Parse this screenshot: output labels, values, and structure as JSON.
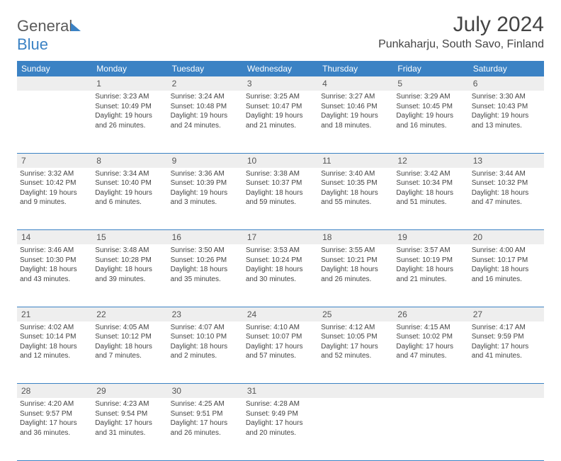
{
  "brand": {
    "part1": "General",
    "part2": "Blue"
  },
  "title": "July 2024",
  "location": "Punkaharju, South Savo, Finland",
  "colors": {
    "header_bg": "#3b82c4",
    "header_fg": "#ffffff",
    "daynum_bg": "#eeeeee",
    "text": "#444444",
    "rule": "#3b82c4"
  },
  "weekdays": [
    "Sunday",
    "Monday",
    "Tuesday",
    "Wednesday",
    "Thursday",
    "Friday",
    "Saturday"
  ],
  "weeks": [
    [
      null,
      {
        "n": "1",
        "sr": "3:23 AM",
        "ss": "10:49 PM",
        "dl": "19 hours and 26 minutes."
      },
      {
        "n": "2",
        "sr": "3:24 AM",
        "ss": "10:48 PM",
        "dl": "19 hours and 24 minutes."
      },
      {
        "n": "3",
        "sr": "3:25 AM",
        "ss": "10:47 PM",
        "dl": "19 hours and 21 minutes."
      },
      {
        "n": "4",
        "sr": "3:27 AM",
        "ss": "10:46 PM",
        "dl": "19 hours and 18 minutes."
      },
      {
        "n": "5",
        "sr": "3:29 AM",
        "ss": "10:45 PM",
        "dl": "19 hours and 16 minutes."
      },
      {
        "n": "6",
        "sr": "3:30 AM",
        "ss": "10:43 PM",
        "dl": "19 hours and 13 minutes."
      }
    ],
    [
      {
        "n": "7",
        "sr": "3:32 AM",
        "ss": "10:42 PM",
        "dl": "19 hours and 9 minutes."
      },
      {
        "n": "8",
        "sr": "3:34 AM",
        "ss": "10:40 PM",
        "dl": "19 hours and 6 minutes."
      },
      {
        "n": "9",
        "sr": "3:36 AM",
        "ss": "10:39 PM",
        "dl": "19 hours and 3 minutes."
      },
      {
        "n": "10",
        "sr": "3:38 AM",
        "ss": "10:37 PM",
        "dl": "18 hours and 59 minutes."
      },
      {
        "n": "11",
        "sr": "3:40 AM",
        "ss": "10:35 PM",
        "dl": "18 hours and 55 minutes."
      },
      {
        "n": "12",
        "sr": "3:42 AM",
        "ss": "10:34 PM",
        "dl": "18 hours and 51 minutes."
      },
      {
        "n": "13",
        "sr": "3:44 AM",
        "ss": "10:32 PM",
        "dl": "18 hours and 47 minutes."
      }
    ],
    [
      {
        "n": "14",
        "sr": "3:46 AM",
        "ss": "10:30 PM",
        "dl": "18 hours and 43 minutes."
      },
      {
        "n": "15",
        "sr": "3:48 AM",
        "ss": "10:28 PM",
        "dl": "18 hours and 39 minutes."
      },
      {
        "n": "16",
        "sr": "3:50 AM",
        "ss": "10:26 PM",
        "dl": "18 hours and 35 minutes."
      },
      {
        "n": "17",
        "sr": "3:53 AM",
        "ss": "10:24 PM",
        "dl": "18 hours and 30 minutes."
      },
      {
        "n": "18",
        "sr": "3:55 AM",
        "ss": "10:21 PM",
        "dl": "18 hours and 26 minutes."
      },
      {
        "n": "19",
        "sr": "3:57 AM",
        "ss": "10:19 PM",
        "dl": "18 hours and 21 minutes."
      },
      {
        "n": "20",
        "sr": "4:00 AM",
        "ss": "10:17 PM",
        "dl": "18 hours and 16 minutes."
      }
    ],
    [
      {
        "n": "21",
        "sr": "4:02 AM",
        "ss": "10:14 PM",
        "dl": "18 hours and 12 minutes."
      },
      {
        "n": "22",
        "sr": "4:05 AM",
        "ss": "10:12 PM",
        "dl": "18 hours and 7 minutes."
      },
      {
        "n": "23",
        "sr": "4:07 AM",
        "ss": "10:10 PM",
        "dl": "18 hours and 2 minutes."
      },
      {
        "n": "24",
        "sr": "4:10 AM",
        "ss": "10:07 PM",
        "dl": "17 hours and 57 minutes."
      },
      {
        "n": "25",
        "sr": "4:12 AM",
        "ss": "10:05 PM",
        "dl": "17 hours and 52 minutes."
      },
      {
        "n": "26",
        "sr": "4:15 AM",
        "ss": "10:02 PM",
        "dl": "17 hours and 47 minutes."
      },
      {
        "n": "27",
        "sr": "4:17 AM",
        "ss": "9:59 PM",
        "dl": "17 hours and 41 minutes."
      }
    ],
    [
      {
        "n": "28",
        "sr": "4:20 AM",
        "ss": "9:57 PM",
        "dl": "17 hours and 36 minutes."
      },
      {
        "n": "29",
        "sr": "4:23 AM",
        "ss": "9:54 PM",
        "dl": "17 hours and 31 minutes."
      },
      {
        "n": "30",
        "sr": "4:25 AM",
        "ss": "9:51 PM",
        "dl": "17 hours and 26 minutes."
      },
      {
        "n": "31",
        "sr": "4:28 AM",
        "ss": "9:49 PM",
        "dl": "17 hours and 20 minutes."
      },
      null,
      null,
      null
    ]
  ],
  "labels": {
    "sunrise": "Sunrise:",
    "sunset": "Sunset:",
    "daylight": "Daylight:"
  }
}
